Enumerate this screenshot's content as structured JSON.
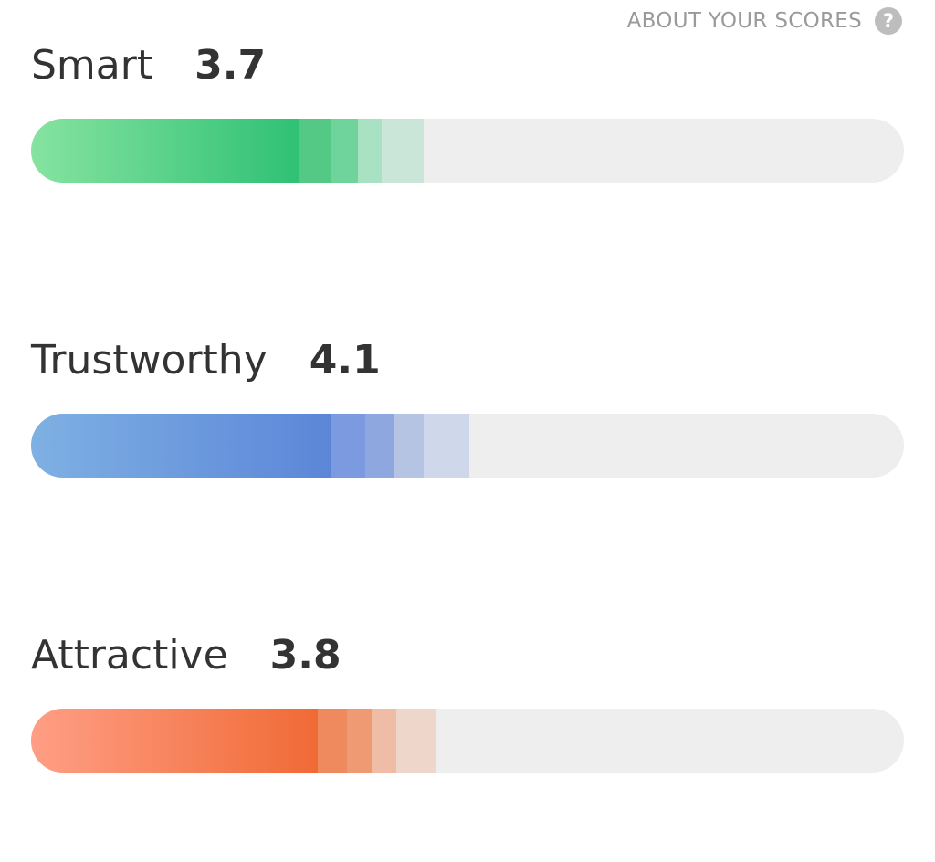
{
  "about": {
    "label": "ABOUT YOUR SCORES",
    "icon": "help-circle-icon"
  },
  "scores": [
    {
      "name": "Smart",
      "value": "3.7",
      "level": 0.308,
      "gradient": [
        "#86e3a0",
        "#2fc175"
      ],
      "tail_colors": [
        "#54c986",
        "#6fd39c",
        "#a9e2c3",
        "#c9e6d8"
      ],
      "tail_levels": [
        0.343,
        0.374,
        0.402,
        0.45
      ]
    },
    {
      "name": "Trustworthy",
      "value": "4.1",
      "level": 0.344,
      "gradient": [
        "#7fb0e3",
        "#5b86d8"
      ],
      "tail_colors": [
        "#7c9ae0",
        "#8ea7df",
        "#b6c4e4",
        "#cfd8ea"
      ],
      "tail_levels": [
        0.383,
        0.416,
        0.45,
        0.502
      ]
    },
    {
      "name": "Attractive",
      "value": "3.8",
      "level": 0.328,
      "gradient": [
        "#ff9e85",
        "#f06a35"
      ],
      "tail_colors": [
        "#ee8a5e",
        "#f09a74",
        "#efbca6",
        "#eed6cb"
      ],
      "tail_levels": [
        0.362,
        0.39,
        0.418,
        0.463
      ]
    }
  ]
}
